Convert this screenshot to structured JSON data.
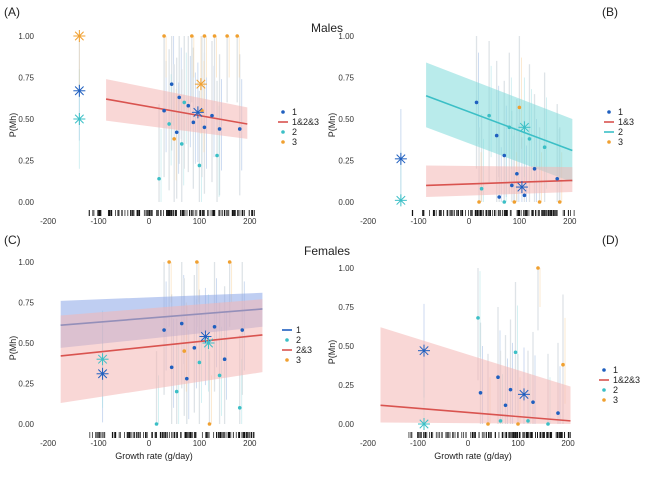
{
  "figure": {
    "section_top": "Males",
    "section_bottom": "Females"
  },
  "colors": {
    "c1": "#1f5fbf",
    "c2": "#3bbfc6",
    "c3": "#f0a030",
    "red": "#d9534f",
    "band_red": "#f4b6b4",
    "band_cyan": "#7fdada",
    "band_blue": "#8aa6e8",
    "rug": "#111111",
    "grey_bar": "#b7c3cb"
  },
  "chart_data": [
    {
      "panel": "(A)",
      "type": "scatter",
      "ylabel": "P(Mh)",
      "xlabel": "",
      "xlim": [
        -220,
        240
      ],
      "ylim": [
        0,
        1
      ],
      "xticks": [
        "-200",
        "-100",
        "0",
        "100",
        "200"
      ],
      "xtick_values": [
        -200,
        -100,
        0,
        100,
        200
      ],
      "yticks": [
        "0.00",
        "0.25",
        "0.50",
        "0.75",
        "1.00"
      ],
      "ytick_values": [
        0,
        0.25,
        0.5,
        0.75,
        1
      ],
      "legend": [
        {
          "label": "1",
          "key": "c1",
          "kind": "point"
        },
        {
          "label": "1&2&3",
          "key": "red",
          "kind": "line"
        },
        {
          "label": "2",
          "key": "c2",
          "kind": "point"
        },
        {
          "label": "3",
          "key": "c3",
          "kind": "point"
        }
      ],
      "fits": [
        {
          "color": "red",
          "band": "band_red",
          "x": [
            -85,
            195
          ],
          "y": [
            0.62,
            0.47
          ],
          "lo": [
            0.49,
            0.38
          ],
          "hi": [
            0.74,
            0.57
          ]
        }
      ],
      "stars": [
        {
          "x": -138,
          "y": 0.67,
          "color": "c1"
        },
        {
          "x": -138,
          "y": 0.5,
          "color": "c2"
        },
        {
          "x": -138,
          "y": 1.0,
          "color": "c3"
        },
        {
          "x": 103,
          "y": 0.71,
          "color": "c3"
        },
        {
          "x": 97,
          "y": 0.54,
          "color": "c1"
        }
      ],
      "points": [
        {
          "x": 45,
          "y": 0.71,
          "c": "c1"
        },
        {
          "x": 60,
          "y": 0.63,
          "c": "c1"
        },
        {
          "x": 78,
          "y": 0.58,
          "c": "c1"
        },
        {
          "x": 30,
          "y": 0.55,
          "c": "c1"
        },
        {
          "x": 110,
          "y": 0.45,
          "c": "c1"
        },
        {
          "x": 125,
          "y": 0.52,
          "c": "c1"
        },
        {
          "x": 55,
          "y": 0.42,
          "c": "c1"
        },
        {
          "x": 88,
          "y": 0.48,
          "c": "c1"
        },
        {
          "x": 140,
          "y": 0.44,
          "c": "c1"
        },
        {
          "x": 180,
          "y": 0.44,
          "c": "c1"
        },
        {
          "x": 20,
          "y": 0.14,
          "c": "c2"
        },
        {
          "x": 65,
          "y": 0.35,
          "c": "c2"
        },
        {
          "x": 100,
          "y": 0.22,
          "c": "c2"
        },
        {
          "x": 70,
          "y": 0.6,
          "c": "c2"
        },
        {
          "x": 135,
          "y": 0.28,
          "c": "c2"
        },
        {
          "x": 40,
          "y": 0.47,
          "c": "c2"
        },
        {
          "x": 30,
          "y": 1.0,
          "c": "c3"
        },
        {
          "x": 85,
          "y": 1.0,
          "c": "c3"
        },
        {
          "x": 110,
          "y": 1.0,
          "c": "c3"
        },
        {
          "x": 130,
          "y": 1.0,
          "c": "c3"
        },
        {
          "x": 155,
          "y": 1.0,
          "c": "c3"
        },
        {
          "x": 175,
          "y": 1.0,
          "c": "c3"
        },
        {
          "x": 105,
          "y": 0.55,
          "c": "c3"
        },
        {
          "x": 50,
          "y": 0.38,
          "c": "c3"
        }
      ]
    },
    {
      "panel": "(B)",
      "type": "scatter",
      "ylabel": "P(Mn)",
      "xlabel": "",
      "xlim": [
        -220,
        240
      ],
      "ylim": [
        0,
        1
      ],
      "xticks": [
        "-200",
        "-100",
        "0",
        "100",
        "200"
      ],
      "xtick_values": [
        -200,
        -100,
        0,
        100,
        200
      ],
      "yticks": [
        "0.00",
        "0.25",
        "0.50",
        "0.75",
        "1.00"
      ],
      "ytick_values": [
        0,
        0.25,
        0.5,
        0.75,
        1
      ],
      "legend": [
        {
          "label": "1",
          "key": "c1",
          "kind": "point"
        },
        {
          "label": "1&3",
          "key": "red",
          "kind": "line"
        },
        {
          "label": "2",
          "key": "c2",
          "kind": "line"
        },
        {
          "label": "3",
          "key": "c3",
          "kind": "point"
        }
      ],
      "fits": [
        {
          "color": "c2",
          "band": "band_cyan",
          "x": [
            -85,
            205
          ],
          "y": [
            0.64,
            0.31
          ],
          "lo": [
            0.45,
            0.12
          ],
          "hi": [
            0.84,
            0.5
          ]
        },
        {
          "color": "red",
          "band": "band_red",
          "x": [
            -85,
            205
          ],
          "y": [
            0.1,
            0.13
          ],
          "lo": [
            0.03,
            0.06
          ],
          "hi": [
            0.22,
            0.21
          ]
        }
      ],
      "stars": [
        {
          "x": -135,
          "y": 0.26,
          "color": "c1"
        },
        {
          "x": -135,
          "y": 0.01,
          "color": "c2"
        },
        {
          "x": 105,
          "y": 0.09,
          "color": "c1"
        },
        {
          "x": 110,
          "y": 0.45,
          "color": "c2"
        }
      ],
      "points": [
        {
          "x": 15,
          "y": 0.6,
          "c": "c1"
        },
        {
          "x": 55,
          "y": 0.4,
          "c": "c1"
        },
        {
          "x": 70,
          "y": 0.28,
          "c": "c1"
        },
        {
          "x": 95,
          "y": 0.17,
          "c": "c1"
        },
        {
          "x": 85,
          "y": 0.1,
          "c": "c1"
        },
        {
          "x": 130,
          "y": 0.2,
          "c": "c1"
        },
        {
          "x": 175,
          "y": 0.14,
          "c": "c1"
        },
        {
          "x": 60,
          "y": 0.03,
          "c": "c1"
        },
        {
          "x": 110,
          "y": 0.04,
          "c": "c1"
        },
        {
          "x": 80,
          "y": 0.45,
          "c": "c2"
        },
        {
          "x": 120,
          "y": 0.38,
          "c": "c2"
        },
        {
          "x": 40,
          "y": 0.52,
          "c": "c2"
        },
        {
          "x": 150,
          "y": 0.33,
          "c": "c2"
        },
        {
          "x": 25,
          "y": 0.08,
          "c": "c2"
        },
        {
          "x": 70,
          "y": 0.0,
          "c": "c2"
        },
        {
          "x": 20,
          "y": 0.0,
          "c": "c3"
        },
        {
          "x": 90,
          "y": 0.0,
          "c": "c3"
        },
        {
          "x": 140,
          "y": 0.0,
          "c": "c3"
        },
        {
          "x": 180,
          "y": 0.0,
          "c": "c3"
        },
        {
          "x": 100,
          "y": 0.57,
          "c": "c3"
        }
      ]
    },
    {
      "panel": "(C)",
      "type": "scatter",
      "ylabel": "P(Mh)",
      "xlabel": "Growth rate (g/day)",
      "xlim": [
        -220,
        240
      ],
      "ylim": [
        0,
        1
      ],
      "xticks": [
        "-200",
        "-100",
        "0",
        "100",
        "200"
      ],
      "xtick_values": [
        -200,
        -100,
        0,
        100,
        200
      ],
      "yticks": [
        "0.00",
        "0.25",
        "0.50",
        "0.75",
        "1.00"
      ],
      "ytick_values": [
        0,
        0.25,
        0.5,
        0.75,
        1
      ],
      "legend": [
        {
          "label": "1",
          "key": "c1",
          "kind": "line"
        },
        {
          "label": "2",
          "key": "c2",
          "kind": "point"
        },
        {
          "label": "2&3",
          "key": "red",
          "kind": "line"
        },
        {
          "label": "3",
          "key": "c3",
          "kind": "point"
        }
      ],
      "fits": [
        {
          "color": "c1",
          "band": "band_blue",
          "x": [
            -175,
            225
          ],
          "y": [
            0.61,
            0.71
          ],
          "lo": [
            0.47,
            0.6
          ],
          "hi": [
            0.76,
            0.81
          ]
        },
        {
          "color": "red",
          "band": "band_red",
          "x": [
            -175,
            225
          ],
          "y": [
            0.42,
            0.55
          ],
          "lo": [
            0.13,
            0.32
          ],
          "hi": [
            0.67,
            0.77
          ]
        }
      ],
      "stars": [
        {
          "x": -92,
          "y": 0.31,
          "color": "c1"
        },
        {
          "x": -92,
          "y": 0.4,
          "color": "c2"
        },
        {
          "x": 112,
          "y": 0.54,
          "color": "c1"
        },
        {
          "x": 118,
          "y": 0.5,
          "color": "c2"
        }
      ],
      "points": [
        {
          "x": 30,
          "y": 0.58,
          "c": "c1"
        },
        {
          "x": 65,
          "y": 0.62,
          "c": "c1"
        },
        {
          "x": 90,
          "y": 0.47,
          "c": "c1"
        },
        {
          "x": 130,
          "y": 0.6,
          "c": "c1"
        },
        {
          "x": 45,
          "y": 0.35,
          "c": "c1"
        },
        {
          "x": 185,
          "y": 0.58,
          "c": "c1"
        },
        {
          "x": 75,
          "y": 0.28,
          "c": "c1"
        },
        {
          "x": 150,
          "y": 0.4,
          "c": "c1"
        },
        {
          "x": 15,
          "y": 0.0,
          "c": "c2"
        },
        {
          "x": 55,
          "y": 0.2,
          "c": "c2"
        },
        {
          "x": 100,
          "y": 0.38,
          "c": "c2"
        },
        {
          "x": 140,
          "y": 0.3,
          "c": "c2"
        },
        {
          "x": 180,
          "y": 0.1,
          "c": "c2"
        },
        {
          "x": 40,
          "y": 1.0,
          "c": "c3"
        },
        {
          "x": 95,
          "y": 1.0,
          "c": "c3"
        },
        {
          "x": 160,
          "y": 1.0,
          "c": "c3"
        },
        {
          "x": 120,
          "y": 0.0,
          "c": "c3"
        },
        {
          "x": 70,
          "y": 0.45,
          "c": "c3"
        }
      ]
    },
    {
      "panel": "(D)",
      "type": "scatter",
      "ylabel": "P(Mn)",
      "xlabel": "Growth rate (g/day)",
      "xlim": [
        -220,
        240
      ],
      "ylim": [
        0,
        1
      ],
      "xticks": [
        "-200",
        "-100",
        "0",
        "100",
        "200"
      ],
      "xtick_values": [
        -200,
        -100,
        0,
        100,
        200
      ],
      "yticks": [
        "0.00",
        "0.25",
        "0.50",
        "0.75",
        "1.00"
      ],
      "ytick_values": [
        0,
        0.25,
        0.5,
        0.75,
        1
      ],
      "legend": [
        {
          "label": "1",
          "key": "c1",
          "kind": "point"
        },
        {
          "label": "1&2&3",
          "key": "red",
          "kind": "line"
        },
        {
          "label": "2",
          "key": "c2",
          "kind": "point"
        },
        {
          "label": "3",
          "key": "c3",
          "kind": "point"
        }
      ],
      "fits": [
        {
          "color": "red",
          "band": "band_red",
          "x": [
            -175,
            205
          ],
          "y": [
            0.12,
            0.02
          ],
          "lo": [
            0.01,
            0.0
          ],
          "hi": [
            0.62,
            0.24
          ]
        }
      ],
      "stars": [
        {
          "x": -88,
          "y": 0.47,
          "color": "c1"
        },
        {
          "x": -88,
          "y": 0.0,
          "color": "c2"
        },
        {
          "x": 112,
          "y": 0.19,
          "color": "c1"
        }
      ],
      "points": [
        {
          "x": 25,
          "y": 0.2,
          "c": "c1"
        },
        {
          "x": 60,
          "y": 0.3,
          "c": "c1"
        },
        {
          "x": 85,
          "y": 0.22,
          "c": "c1"
        },
        {
          "x": 130,
          "y": 0.14,
          "c": "c1"
        },
        {
          "x": 180,
          "y": 0.07,
          "c": "c1"
        },
        {
          "x": 75,
          "y": 0.12,
          "c": "c1"
        },
        {
          "x": 20,
          "y": 0.68,
          "c": "c2"
        },
        {
          "x": 65,
          "y": 0.02,
          "c": "c2"
        },
        {
          "x": 120,
          "y": 0.02,
          "c": "c2"
        },
        {
          "x": 160,
          "y": 0.0,
          "c": "c2"
        },
        {
          "x": 95,
          "y": 0.46,
          "c": "c2"
        },
        {
          "x": 140,
          "y": 1.0,
          "c": "c3"
        },
        {
          "x": 40,
          "y": 0.0,
          "c": "c3"
        },
        {
          "x": 100,
          "y": 0.0,
          "c": "c3"
        },
        {
          "x": 190,
          "y": 0.38,
          "c": "c3"
        }
      ]
    }
  ]
}
